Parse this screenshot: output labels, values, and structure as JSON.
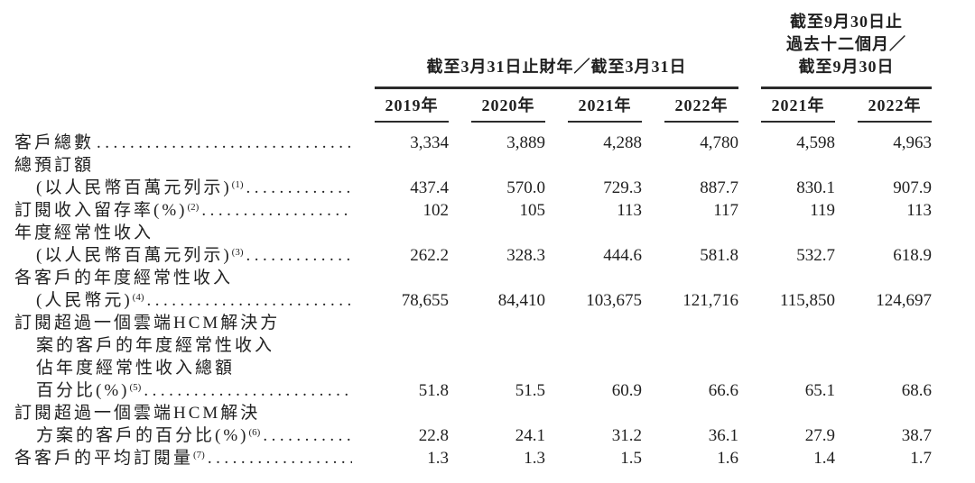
{
  "document": {
    "colors": {
      "background": "#ffffff",
      "text": "#1f1f1f",
      "rule": "#2b2b2b"
    },
    "header": {
      "group1": {
        "title": "截至3月31日止財年／截至3月31日"
      },
      "group2": {
        "lines": [
          "截至9月30日止",
          "過去十二個月／",
          "截至9月30日"
        ]
      },
      "year_columns": [
        "2019年",
        "2020年",
        "2021年",
        "2022年",
        "2021年",
        "2022年"
      ]
    },
    "rows": [
      {
        "lines": [
          {
            "text": "客戶總數",
            "indent": 0,
            "leader": true
          }
        ],
        "values": [
          "3,334",
          "3,889",
          "4,288",
          "4,780",
          "4,598",
          "4,963"
        ]
      },
      {
        "lines": [
          {
            "text": "總預訂額",
            "indent": 0
          },
          {
            "text": "(以人民幣百萬元列示)",
            "sup": "(1)",
            "indent": 1,
            "leader": true
          }
        ],
        "values": [
          "437.4",
          "570.0",
          "729.3",
          "887.7",
          "830.1",
          "907.9"
        ]
      },
      {
        "lines": [
          {
            "text": "訂閱收入留存率(%)",
            "sup": "(2)",
            "indent": 0,
            "leader": true
          }
        ],
        "values": [
          "102",
          "105",
          "113",
          "117",
          "119",
          "113"
        ]
      },
      {
        "lines": [
          {
            "text": "年度經常性收入",
            "indent": 0
          },
          {
            "text": "(以人民幣百萬元列示)",
            "sup": "(3)",
            "indent": 1,
            "leader": true
          }
        ],
        "values": [
          "262.2",
          "328.3",
          "444.6",
          "581.8",
          "532.7",
          "618.9"
        ]
      },
      {
        "lines": [
          {
            "text": "各客戶的年度經常性收入",
            "indent": 0
          },
          {
            "text": "(人民幣元)",
            "sup": "(4)",
            "indent": 1,
            "leader": true
          }
        ],
        "values": [
          "78,655",
          "84,410",
          "103,675",
          "121,716",
          "115,850",
          "124,697"
        ]
      },
      {
        "lines": [
          {
            "text": "訂閱超過一個雲端HCM解決方",
            "indent": 0
          },
          {
            "text": "案的客戶的年度經常性收入",
            "indent": 1
          },
          {
            "text": "佔年度經常性收入總額",
            "indent": 1
          },
          {
            "text": "百分比(%)",
            "sup": "(5)",
            "indent": 1,
            "leader": true
          }
        ],
        "values": [
          "51.8",
          "51.5",
          "60.9",
          "66.6",
          "65.1",
          "68.6"
        ]
      },
      {
        "lines": [
          {
            "text": "訂閱超過一個雲端HCM解決",
            "indent": 0
          },
          {
            "text": "方案的客戶的百分比(%)",
            "sup": "(6)",
            "indent": 1,
            "leader": true
          }
        ],
        "values": [
          "22.8",
          "24.1",
          "31.2",
          "36.1",
          "27.9",
          "38.7"
        ]
      },
      {
        "lines": [
          {
            "text": "各客戶的平均訂閱量",
            "sup": "(7)",
            "indent": 0,
            "leader": true
          }
        ],
        "values": [
          "1.3",
          "1.3",
          "1.5",
          "1.6",
          "1.4",
          "1.7"
        ]
      }
    ]
  }
}
